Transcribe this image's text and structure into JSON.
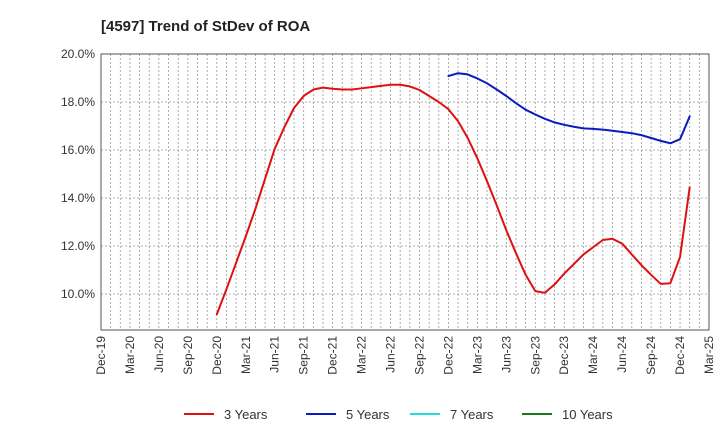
{
  "chart_data": {
    "type": "line",
    "title": "[4597]  Trend of StDev of ROA",
    "xlabel": "",
    "ylabel": "",
    "x_ticks": [
      "Dec-19",
      "Mar-20",
      "Jun-20",
      "Sep-20",
      "Dec-20",
      "Mar-21",
      "Jun-21",
      "Sep-21",
      "Dec-21",
      "Mar-22",
      "Jun-22",
      "Sep-22",
      "Dec-22",
      "Mar-23",
      "Jun-23",
      "Sep-23",
      "Dec-23",
      "Mar-24",
      "Jun-24",
      "Sep-24",
      "Dec-24",
      "Mar-25"
    ],
    "y_ticks": [
      "10.0%",
      "12.0%",
      "14.0%",
      "16.0%",
      "18.0%",
      "20.0%"
    ],
    "ylim": [
      8.5,
      20.0
    ],
    "y_unit": "%",
    "grid": true,
    "legend_position": "bottom",
    "series": [
      {
        "name": "3 Years",
        "color": "#dd1111",
        "points": [
          [
            "Dec-20",
            9.15
          ],
          [
            "Jan-21",
            10.2
          ],
          [
            "Feb-21",
            11.3
          ],
          [
            "Mar-21",
            12.4
          ],
          [
            "Apr-21",
            13.55
          ],
          [
            "May-21",
            14.8
          ],
          [
            "Jun-21",
            16.05
          ],
          [
            "Jul-21",
            16.95
          ],
          [
            "Aug-21",
            17.75
          ],
          [
            "Sep-21",
            18.25
          ],
          [
            "Oct-21",
            18.52
          ],
          [
            "Nov-21",
            18.6
          ],
          [
            "Dec-21",
            18.55
          ],
          [
            "Jan-22",
            18.52
          ],
          [
            "Feb-22",
            18.52
          ],
          [
            "Mar-22",
            18.57
          ],
          [
            "Apr-22",
            18.62
          ],
          [
            "May-22",
            18.67
          ],
          [
            "Jun-22",
            18.72
          ],
          [
            "Jul-22",
            18.72
          ],
          [
            "Aug-22",
            18.65
          ],
          [
            "Sep-22",
            18.5
          ],
          [
            "Oct-22",
            18.25
          ],
          [
            "Nov-22",
            18.0
          ],
          [
            "Dec-22",
            17.7
          ],
          [
            "Jan-23",
            17.2
          ],
          [
            "Feb-23",
            16.5
          ],
          [
            "Mar-23",
            15.65
          ],
          [
            "Apr-23",
            14.7
          ],
          [
            "May-23",
            13.7
          ],
          [
            "Jun-23",
            12.65
          ],
          [
            "Jul-23",
            11.7
          ],
          [
            "Aug-23",
            10.8
          ],
          [
            "Sep-23",
            10.12
          ],
          [
            "Oct-23",
            10.05
          ],
          [
            "Nov-23",
            10.4
          ],
          [
            "Dec-23",
            10.85
          ],
          [
            "Jan-24",
            11.25
          ],
          [
            "Feb-24",
            11.65
          ],
          [
            "Mar-24",
            11.95
          ],
          [
            "Apr-24",
            12.25
          ],
          [
            "May-24",
            12.3
          ],
          [
            "Jun-24",
            12.1
          ],
          [
            "Jul-24",
            11.65
          ],
          [
            "Aug-24",
            11.2
          ],
          [
            "Sep-24",
            10.8
          ],
          [
            "Oct-24",
            10.42
          ],
          [
            "Nov-24",
            10.45
          ],
          [
            "Dec-24",
            11.55
          ],
          [
            "Jan-25",
            14.45
          ]
        ]
      },
      {
        "name": "5 Years",
        "color": "#0a1cbf",
        "points": [
          [
            "Dec-22",
            19.08
          ],
          [
            "Jan-23",
            19.2
          ],
          [
            "Feb-23",
            19.15
          ],
          [
            "Mar-23",
            18.98
          ],
          [
            "Apr-23",
            18.78
          ],
          [
            "May-23",
            18.52
          ],
          [
            "Jun-23",
            18.25
          ],
          [
            "Jul-23",
            17.95
          ],
          [
            "Aug-23",
            17.68
          ],
          [
            "Sep-23",
            17.48
          ],
          [
            "Oct-23",
            17.3
          ],
          [
            "Nov-23",
            17.15
          ],
          [
            "Dec-23",
            17.05
          ],
          [
            "Jan-24",
            16.97
          ],
          [
            "Feb-24",
            16.9
          ],
          [
            "Mar-24",
            16.88
          ],
          [
            "Apr-24",
            16.85
          ],
          [
            "May-24",
            16.8
          ],
          [
            "Jun-24",
            16.75
          ],
          [
            "Jul-24",
            16.7
          ],
          [
            "Aug-24",
            16.62
          ],
          [
            "Sep-24",
            16.5
          ],
          [
            "Oct-24",
            16.38
          ],
          [
            "Nov-24",
            16.28
          ],
          [
            "Dec-24",
            16.45
          ],
          [
            "Jan-25",
            17.4
          ]
        ]
      },
      {
        "name": "7 Years",
        "color": "#22dddd",
        "points": []
      },
      {
        "name": "10 Years",
        "color": "#1a7a1a",
        "points": []
      }
    ]
  }
}
